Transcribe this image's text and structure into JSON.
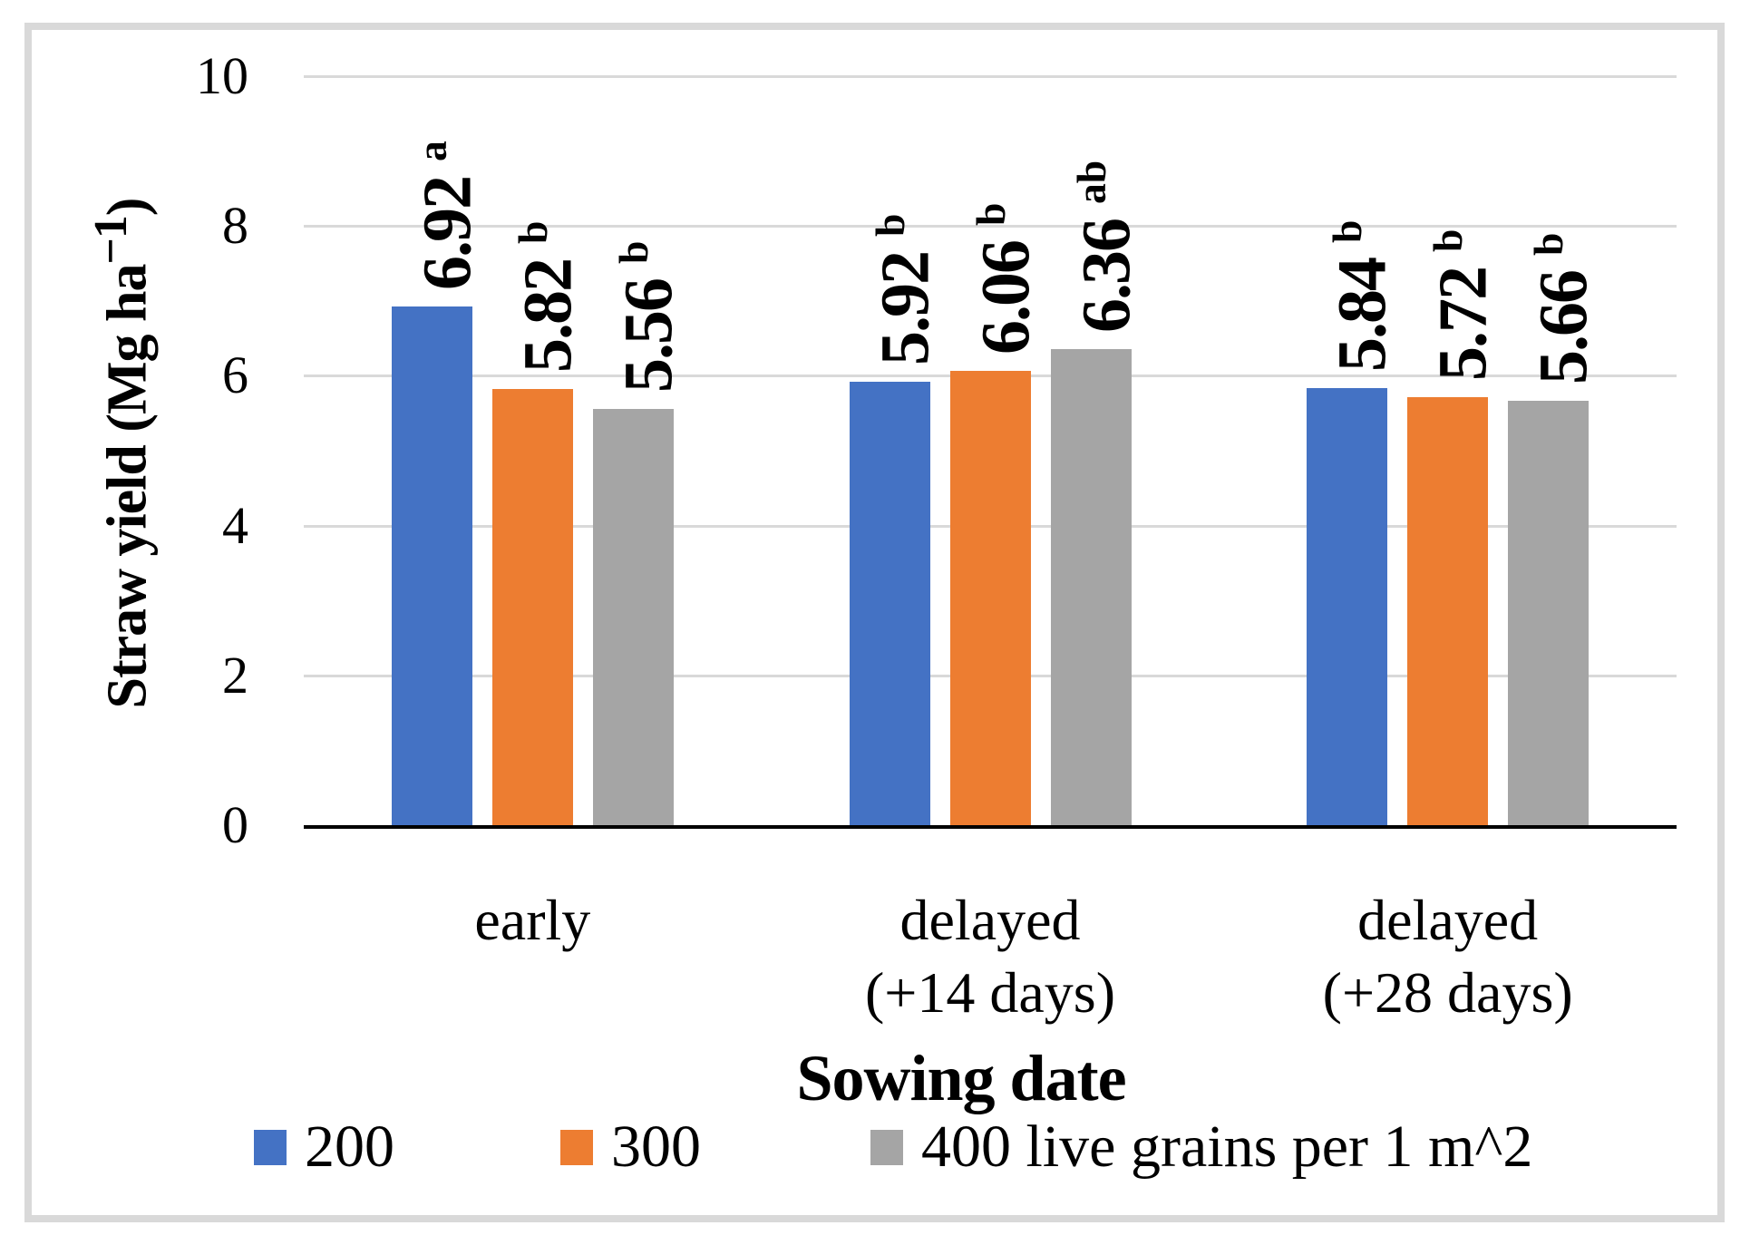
{
  "chart_data": {
    "type": "bar",
    "categories": [
      "early",
      "delayed (+14 days)",
      "delayed (+28 days)"
    ],
    "categories_display_lines": [
      [
        "early"
      ],
      [
        "delayed",
        "(+14 days)"
      ],
      [
        "delayed",
        "(+28 days)"
      ]
    ],
    "series": [
      {
        "name": "200",
        "color": "#4472C4",
        "values": [
          6.92,
          5.92,
          5.84
        ],
        "sig_letters": [
          "a",
          "b",
          "b"
        ]
      },
      {
        "name": "300",
        "color": "#ED7D31",
        "values": [
          5.82,
          6.06,
          5.72
        ],
        "sig_letters": [
          "b",
          "b",
          "b"
        ]
      },
      {
        "name": "400 live grains per 1 m^2",
        "color": "#A5A5A5",
        "values": [
          5.56,
          6.36,
          5.66
        ],
        "sig_letters": [
          "b",
          "ab",
          "b"
        ]
      }
    ],
    "xlabel": "Sowing date",
    "ylabel": "Straw yield (Mg ha⁻¹)",
    "ylim": [
      0,
      10
    ],
    "yticks": [
      0,
      2,
      4,
      6,
      8,
      10
    ],
    "grid": true,
    "legend_position": "bottom",
    "colors": {
      "grid": "#D9D9D9",
      "axis": "#000000",
      "frame_border": "#D9D9D9",
      "background": "#FFFFFF",
      "text": "#000000"
    }
  }
}
